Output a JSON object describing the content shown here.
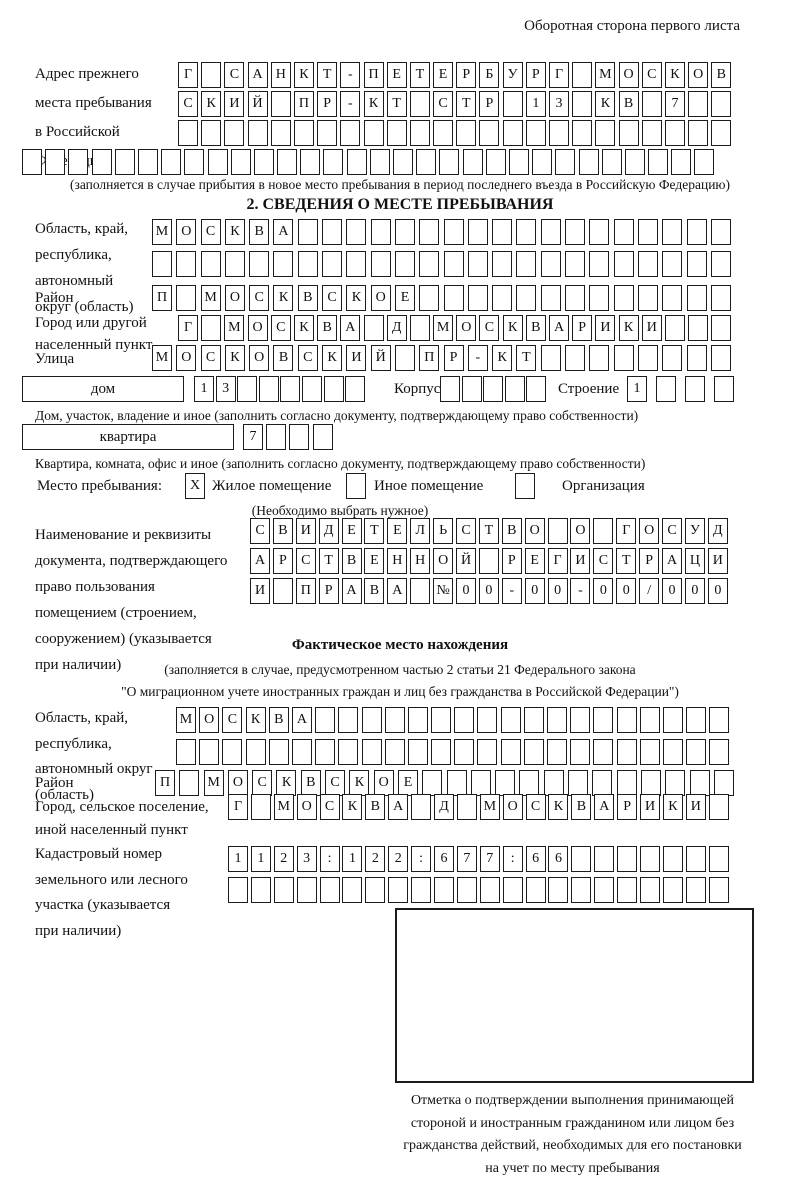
{
  "page": {
    "header_note": "Оборотная сторона первого листа"
  },
  "prev_address": {
    "label_lines": [
      "Адрес прежнего",
      "места пребывания",
      "в Российской",
      "Федерации"
    ],
    "rows": [
      "Г САНКТ-ПЕТЕРБУРГ МОСКОВ",
      "СКИЙ ПР-КТ СТР 13 КВ 7  ",
      "                        ",
      "                              "
    ],
    "note": "(заполняется в случае прибытия в новое место пребывания в период последнего въезда в Российскую Федерацию)"
  },
  "section2": {
    "title": "2. СВЕДЕНИЯ О МЕСТЕ ПРЕБЫВАНИЯ",
    "region": {
      "label_lines": [
        "Область, край,",
        "республика,",
        "автономный",
        "округ (область)"
      ],
      "rows": [
        "МОСКВА                  ",
        "                        "
      ]
    },
    "district": {
      "label": "Район",
      "row": "П МОСКВСКОЕ             "
    },
    "city": {
      "label_lines": [
        "Город или другой",
        "населенный пункт"
      ],
      "row": "Г МОСКВА Д МОСКВАРИКИ   "
    },
    "street": {
      "label": "Улица",
      "row": "МОСКОВСКИЙ ПР-КТ        "
    },
    "house": {
      "type_label": "дом",
      "number_cells": "13      ",
      "korpus_label": "Корпус",
      "korpus_cells": "     ",
      "stroenie_label": "Строение",
      "stroenie_cells": "1   ",
      "caption": "Дом, участок, владение и иное (заполнить согласно документу, подтверждающему право собственности)"
    },
    "apartment": {
      "type_label": "квартира",
      "cells": "7   ",
      "caption": "Квартира, комната, офис и иное (заполнить согласно документу, подтверждающему право собственности)"
    },
    "stay_type": {
      "label": "Место пребывания:",
      "options": [
        {
          "label": "Жилое помещение",
          "checked": "X"
        },
        {
          "label": "Иное помещение",
          "checked": ""
        },
        {
          "label": "Организация",
          "checked": ""
        }
      ],
      "note": "(Необходимо выбрать нужное)"
    },
    "document": {
      "label_lines": [
        "Наименование и реквизиты",
        "документа, подтверждающего",
        "право пользования",
        "помещением (строением,",
        "сооружением) (указывается",
        "при наличии)"
      ],
      "rows": [
        "СВИДЕТЕЛЬСТВО О ГОСУД",
        "АРСТВЕННОЙ РЕГИСТРАЦИ",
        "И ПРАВА №00-00-00/000"
      ]
    }
  },
  "actual_location": {
    "title": "Фактическое место нахождения",
    "note_lines": [
      "(заполняется в случае, предусмотренном частью 2 статьи 21 Федерального закона",
      "\"О миграционном учете иностранных граждан и лиц без гражданства в Российской Федерации\")"
    ],
    "region": {
      "label_lines": [
        "Область, край,",
        "республика,",
        "автономный округ",
        "(область)"
      ],
      "rows": [
        "МОСКВА                  ",
        "                        "
      ]
    },
    "district": {
      "label": "Район",
      "row": "П МОСКВСКОЕ             "
    },
    "city": {
      "label_lines": [
        "Город, сельское поселение,",
        "иной населенный пункт"
      ],
      "row": "Г МОСКВА Д МОСКВАРИКИ "
    },
    "cadastral": {
      "label_lines": [
        "Кадастровый номер",
        "земельного или лесного",
        "участка (указывается",
        "при наличии)"
      ],
      "rows": [
        "1123:122:677:66       ",
        "                      "
      ]
    }
  },
  "stamp": {
    "caption_lines": [
      "Отметка о подтверждении выполнения принимающей",
      "стороной и иностранным гражданином или лицом без",
      "гражданства действий, необходимых для его постановки",
      "на учет по месту пребывания"
    ]
  }
}
